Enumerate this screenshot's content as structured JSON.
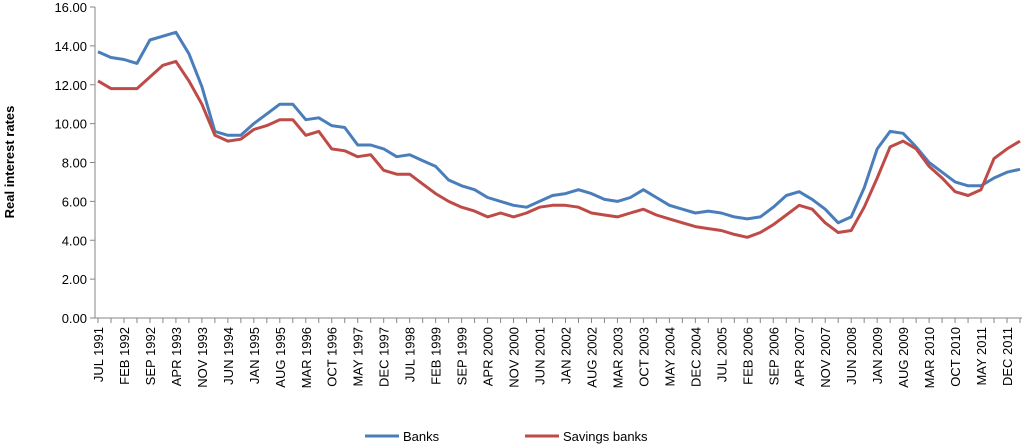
{
  "chart_data": {
    "type": "line",
    "y_label": "Real interest rates",
    "categories": [
      "JUL 1991",
      null,
      "FEB 1992",
      null,
      "SEP 1992",
      null,
      "APR 1993",
      null,
      "NOV 1993",
      null,
      "JUN 1994",
      null,
      "JAN 1995",
      null,
      "AUG 1995",
      null,
      "MAR 1996",
      null,
      "OCT 1996",
      null,
      "MAY 1997",
      null,
      "DEC 1997",
      null,
      "JUL 1998",
      null,
      "FEB 1999",
      null,
      "SEP 1999",
      null,
      "APR 2000",
      null,
      "NOV 2000",
      null,
      "JUN 2001",
      null,
      "JAN 2002",
      null,
      "AUG 2002",
      null,
      "MAR 2003",
      null,
      "OCT 2003",
      null,
      "MAY 2004",
      null,
      "DEC 2004",
      null,
      "JUL 2005",
      null,
      "FEB 2006",
      null,
      "SEP 2006",
      null,
      "APR 2007",
      null,
      "NOV 2007",
      null,
      "JUN 2008",
      null,
      "JAN 2009",
      null,
      "AUG 2009",
      null,
      "MAR 2010",
      null,
      "OCT 2010",
      null,
      "MAY 2011",
      null,
      "DEC 2011",
      null
    ],
    "series": [
      {
        "name": "Banks",
        "color": "#4a7ebb",
        "values": [
          13.7,
          13.4,
          13.3,
          13.1,
          14.3,
          14.5,
          14.7,
          13.6,
          11.9,
          9.6,
          9.4,
          9.4,
          10.0,
          10.5,
          11.0,
          11.0,
          10.2,
          10.3,
          9.9,
          9.8,
          8.9,
          8.9,
          8.7,
          8.3,
          8.4,
          8.1,
          7.8,
          7.1,
          6.8,
          6.6,
          6.2,
          6.0,
          5.8,
          5.7,
          6.0,
          6.3,
          6.4,
          6.6,
          6.4,
          6.1,
          6.0,
          6.2,
          6.6,
          6.2,
          5.8,
          5.6,
          5.4,
          5.5,
          5.4,
          5.2,
          5.1,
          5.2,
          5.7,
          6.3,
          6.5,
          6.1,
          5.6,
          4.9,
          5.2,
          6.7,
          8.7,
          9.6,
          9.5,
          8.8,
          8.0,
          7.5,
          7.0,
          6.8,
          6.8,
          7.2,
          7.5,
          7.65
        ]
      },
      {
        "name": "Savings banks",
        "color": "#be4b48",
        "values": [
          12.2,
          11.8,
          11.8,
          11.8,
          12.4,
          13.0,
          13.2,
          12.2,
          11.0,
          9.4,
          9.1,
          9.2,
          9.7,
          9.9,
          10.2,
          10.2,
          9.4,
          9.6,
          8.7,
          8.6,
          8.3,
          8.4,
          7.6,
          7.4,
          7.4,
          6.9,
          6.4,
          6.0,
          5.7,
          5.5,
          5.2,
          5.4,
          5.2,
          5.4,
          5.7,
          5.8,
          5.8,
          5.7,
          5.4,
          5.3,
          5.2,
          5.4,
          5.6,
          5.3,
          5.1,
          4.9,
          4.7,
          4.6,
          4.5,
          4.3,
          4.15,
          4.4,
          4.8,
          5.3,
          5.8,
          5.6,
          4.9,
          4.4,
          4.5,
          5.7,
          7.2,
          8.8,
          9.1,
          8.7,
          7.8,
          7.2,
          6.5,
          6.3,
          6.6,
          8.2,
          8.7,
          9.1
        ]
      }
    ],
    "ylim": [
      0,
      16
    ],
    "yticks": [
      {
        "value": 0,
        "label": "0.00"
      },
      {
        "value": 2,
        "label": "2.00"
      },
      {
        "value": 4,
        "label": "4.00"
      },
      {
        "value": 6,
        "label": "6.00"
      },
      {
        "value": 8,
        "label": "8.00"
      },
      {
        "value": 10,
        "label": "10.00"
      },
      {
        "value": 12,
        "label": "12.00"
      },
      {
        "value": 14,
        "label": "14.00"
      },
      {
        "value": 16,
        "label": "16.00"
      }
    ],
    "legend": "bottom"
  }
}
